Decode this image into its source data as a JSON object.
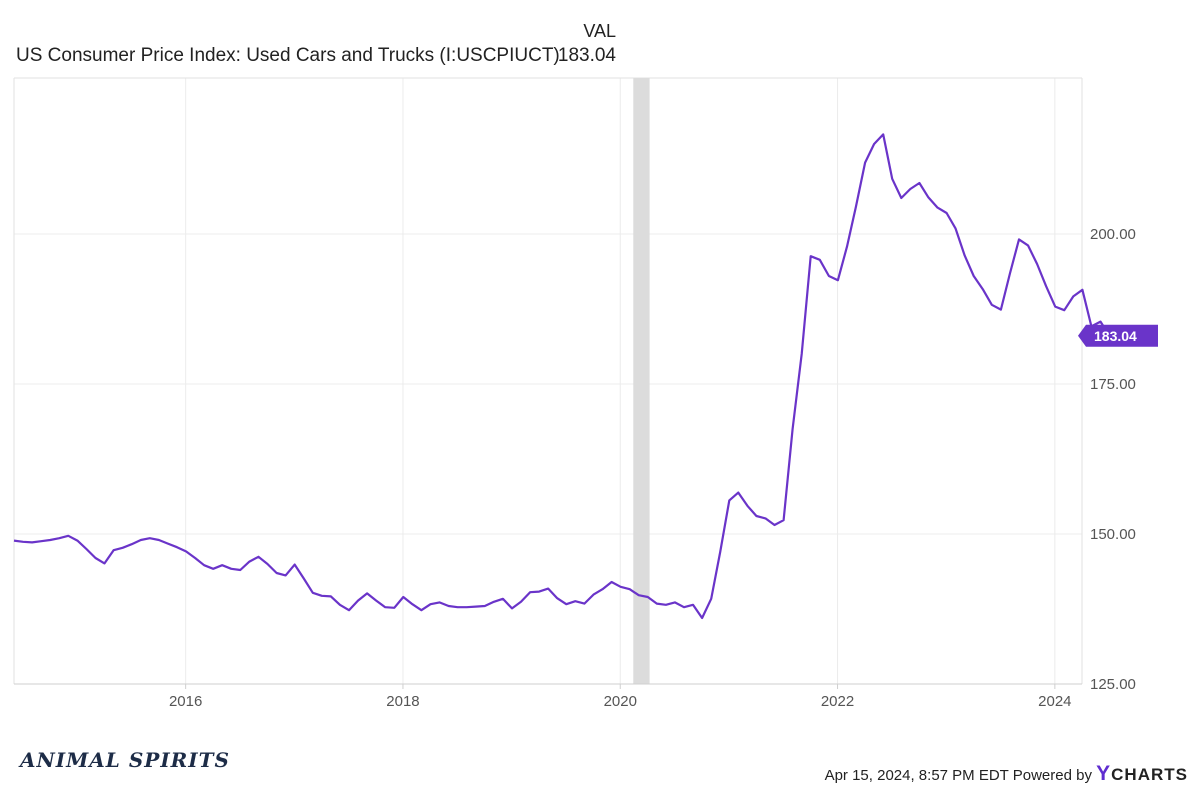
{
  "legend": {
    "column_header": "VAL",
    "series_name": "US Consumer Price Index: Used Cars and Trucks (I:USCPIUCT)",
    "series_value": "183.04"
  },
  "footer": {
    "brand_left": "ANIMAL SPIRITS",
    "timestamp": "Apr 15, 2024, 8:57 PM EDT",
    "powered_by": "Powered by",
    "brand_y": "Y",
    "brand_rest": "CHARTS"
  },
  "colors": {
    "line": "#6a34c9",
    "tag": "#6a34c9",
    "recession": "#dcdcdc",
    "grid": "#ececec"
  },
  "chart_data": {
    "type": "line",
    "title": "US Consumer Price Index: Used Cars and Trucks (I:USCPIUCT)",
    "xlabel": "",
    "ylabel": "",
    "xlim": [
      2014.42,
      2024.25
    ],
    "ylim": [
      125,
      226
    ],
    "y_ticks": [
      125,
      150,
      175,
      200
    ],
    "y_tick_labels": [
      "125.00",
      "150.00",
      "175.00",
      "200.00"
    ],
    "x_ticks": [
      2016,
      2018,
      2020,
      2022,
      2024
    ],
    "x_tick_labels": [
      "2016",
      "2018",
      "2020",
      "2022",
      "2024"
    ],
    "recession_band": [
      2020.12,
      2020.27
    ],
    "last_value_label": "183.04",
    "series": [
      {
        "name": "US Consumer Price Index: Used Cars and Trucks (I:USCPIUCT)",
        "x_start": 2014.42,
        "x_step_months": 1,
        "values": [
          148.9,
          148.7,
          148.6,
          148.8,
          149.0,
          149.3,
          149.7,
          148.9,
          147.5,
          146.0,
          145.1,
          147.3,
          147.7,
          148.3,
          149.0,
          149.3,
          149.0,
          148.4,
          147.8,
          147.1,
          146.0,
          144.8,
          144.2,
          144.8,
          144.2,
          144.0,
          145.4,
          146.2,
          145.0,
          143.5,
          143.1,
          144.9,
          142.6,
          140.2,
          139.7,
          139.6,
          138.2,
          137.3,
          138.9,
          140.1,
          138.9,
          137.8,
          137.7,
          139.5,
          138.3,
          137.3,
          138.3,
          138.6,
          138.0,
          137.8,
          137.8,
          137.9,
          138.0,
          138.7,
          139.2,
          137.6,
          138.7,
          140.3,
          140.4,
          140.9,
          139.3,
          138.3,
          138.8,
          138.4,
          139.9,
          140.8,
          142.0,
          141.2,
          140.8,
          139.8,
          139.5,
          138.4,
          138.2,
          138.6,
          137.8,
          138.2,
          136.0,
          139.2,
          147.0,
          155.6,
          156.9,
          154.7,
          153.0,
          152.6,
          151.5,
          152.3,
          167.5,
          180.0,
          196.3,
          195.7,
          193.0,
          192.3,
          197.9,
          204.6,
          211.9,
          215.0,
          216.6,
          209.2,
          206.0,
          207.5,
          208.5,
          206.1,
          204.4,
          203.5,
          200.9,
          196.4,
          193.0,
          190.8,
          188.2,
          187.4,
          193.4,
          199.1,
          198.1,
          195.0,
          191.3,
          187.9,
          187.3,
          189.6,
          190.7,
          184.6,
          185.4,
          183.04
        ]
      }
    ]
  }
}
